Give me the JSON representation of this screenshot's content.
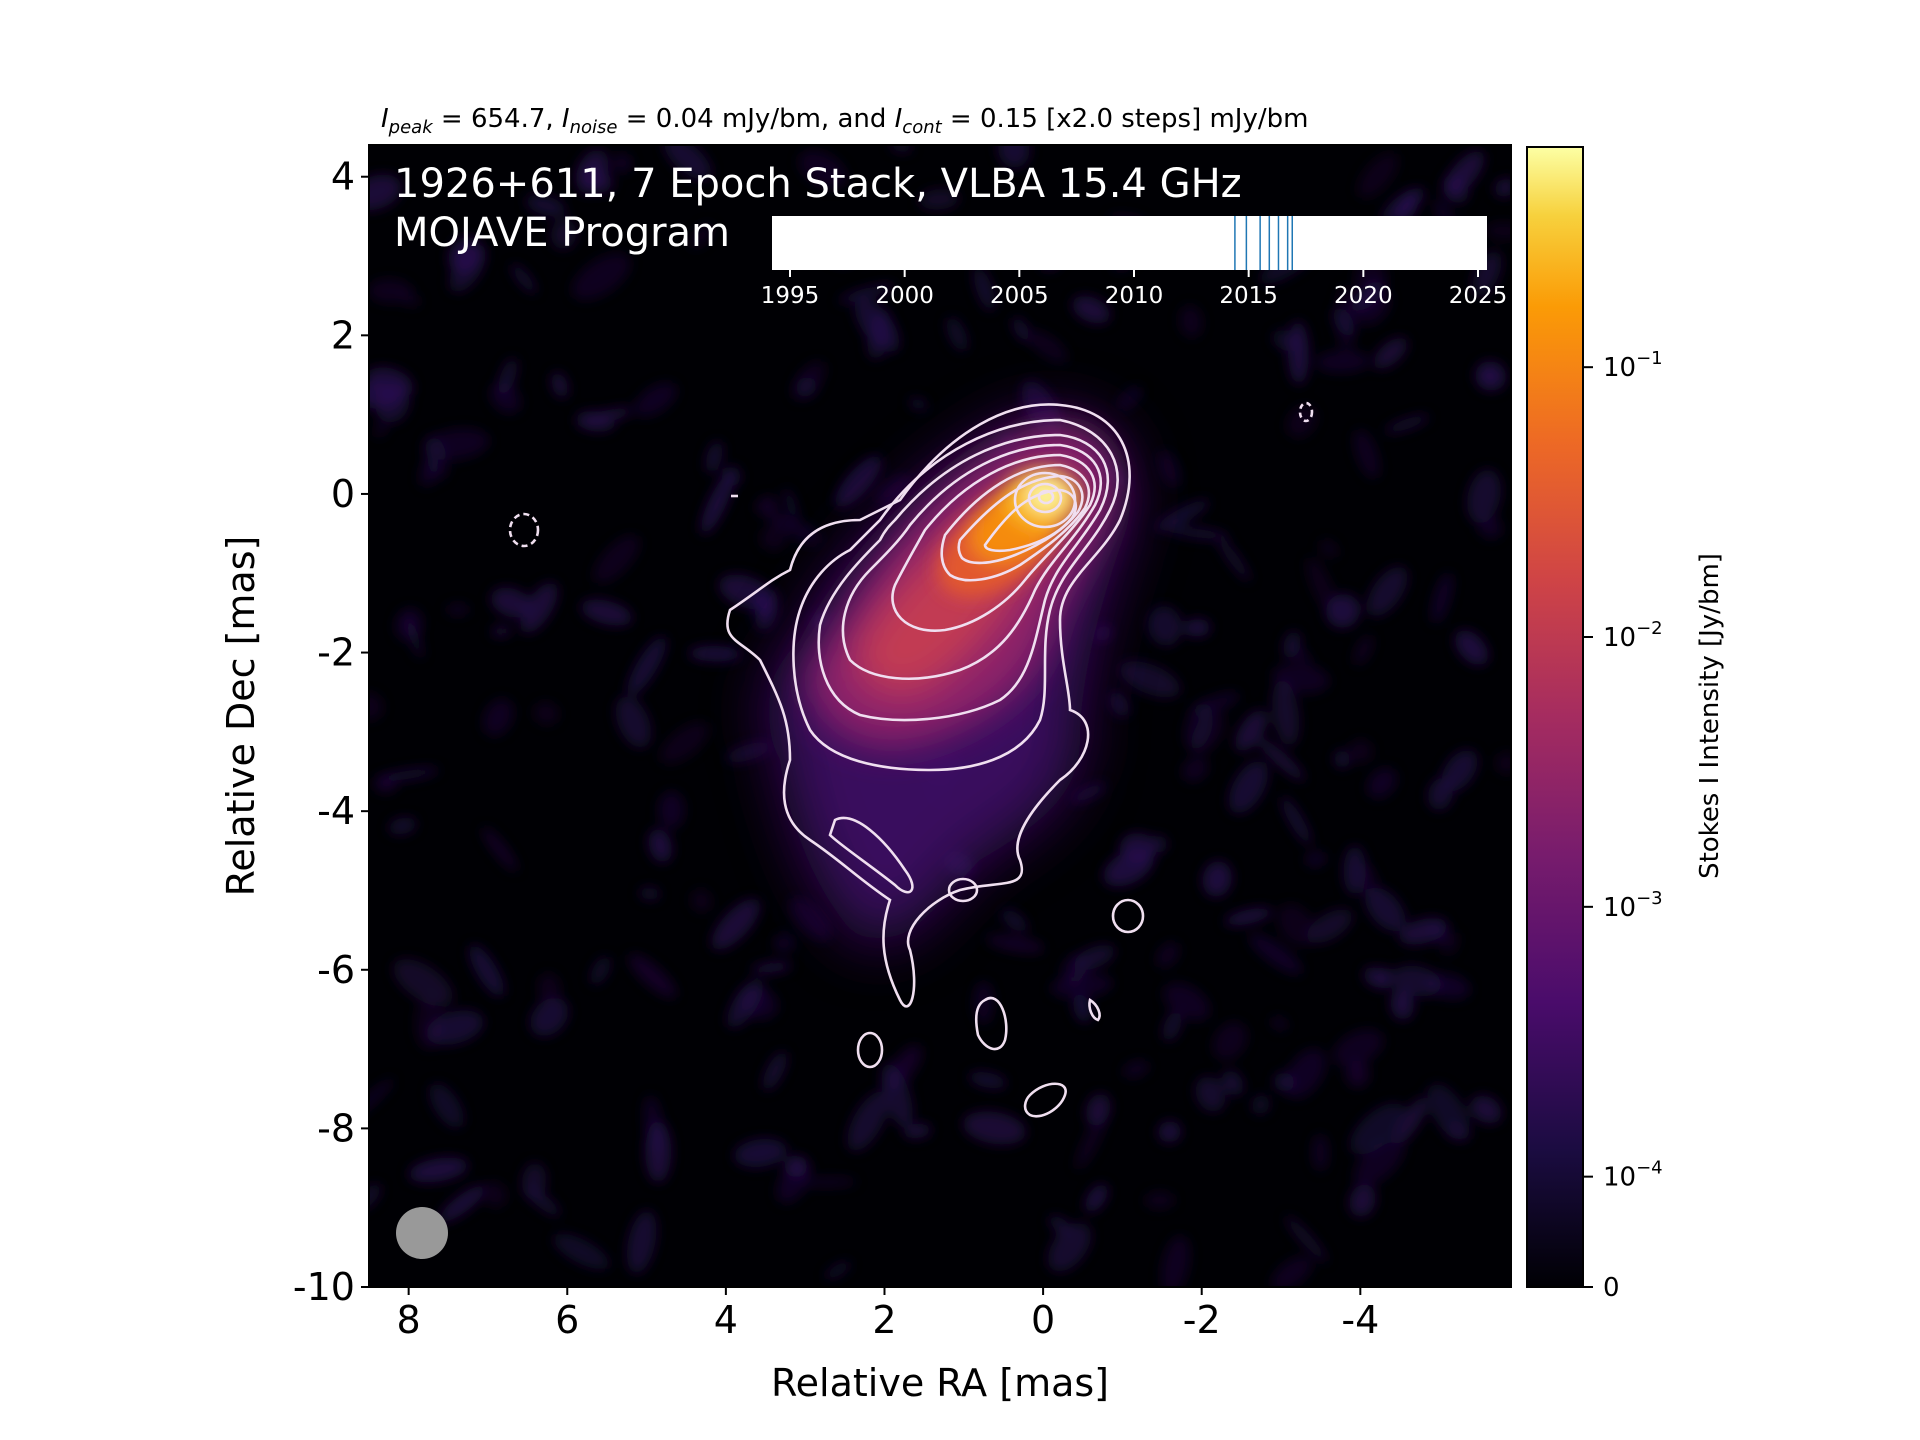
{
  "chart_data": {
    "type": "heatmap",
    "title": {
      "i1": "I",
      "s1": "peak",
      "t1": " = 654.7, ",
      "i2": "I",
      "s2": "noise",
      "t2": " = 0.04 mJy/bm, and ",
      "i3": "I",
      "s3": "cont",
      "t3": " = 0.15 [x2.0 steps] mJy/bm"
    },
    "annotation_line1": "1926+611, 7 Epoch Stack, VLBA 15.4 GHz",
    "annotation_line2": "MOJAVE Program",
    "xlabel": "Relative RA [mas]",
    "ylabel": "Relative Dec [mas]",
    "xlim": [
      8.5,
      -5.9
    ],
    "ylim": [
      -10,
      4.4
    ],
    "x_ticks": [
      8,
      6,
      4,
      2,
      0,
      -2,
      -4
    ],
    "x_tick_labels": [
      "8",
      "6",
      "4",
      "2",
      "0",
      "-2",
      "-4"
    ],
    "y_ticks": [
      4,
      2,
      0,
      -2,
      -4,
      -6,
      -8,
      -10
    ],
    "y_tick_labels": [
      "4",
      "2",
      "0",
      "-2",
      "-4",
      "-6",
      "-8",
      "-10"
    ],
    "colorbar": {
      "label": "Stokes I Intensity [Jy/bm]",
      "scale": "log",
      "range": [
        0,
        0.6547
      ],
      "ticks": [
        0,
        0.0001,
        0.001,
        0.01,
        0.1
      ],
      "tick_labels": [
        {
          "main": "0",
          "exp": ""
        },
        {
          "main": "10",
          "exp": "−4"
        },
        {
          "main": "10",
          "exp": "−3"
        },
        {
          "main": "10",
          "exp": "−2"
        },
        {
          "main": "10",
          "exp": "−1"
        }
      ],
      "colormap": "inferno"
    },
    "epoch_timeline": {
      "ticks": [
        1995,
        2000,
        2005,
        2010,
        2015,
        2020,
        2025
      ],
      "tick_labels": [
        "1995",
        "2000",
        "2005",
        "2010",
        "2015",
        "2020",
        "2025"
      ],
      "range": [
        1994,
        2026
      ],
      "epochs": [
        2014.4,
        2014.9,
        2015.5,
        2015.9,
        2016.3,
        2016.7,
        2016.9
      ],
      "epoch_color": "#1f77b4"
    },
    "peak_position_mas": [
      0,
      0
    ],
    "jet_direction": "south-east",
    "beam_fill": "#999999",
    "contour_color": "#f0dff0"
  }
}
